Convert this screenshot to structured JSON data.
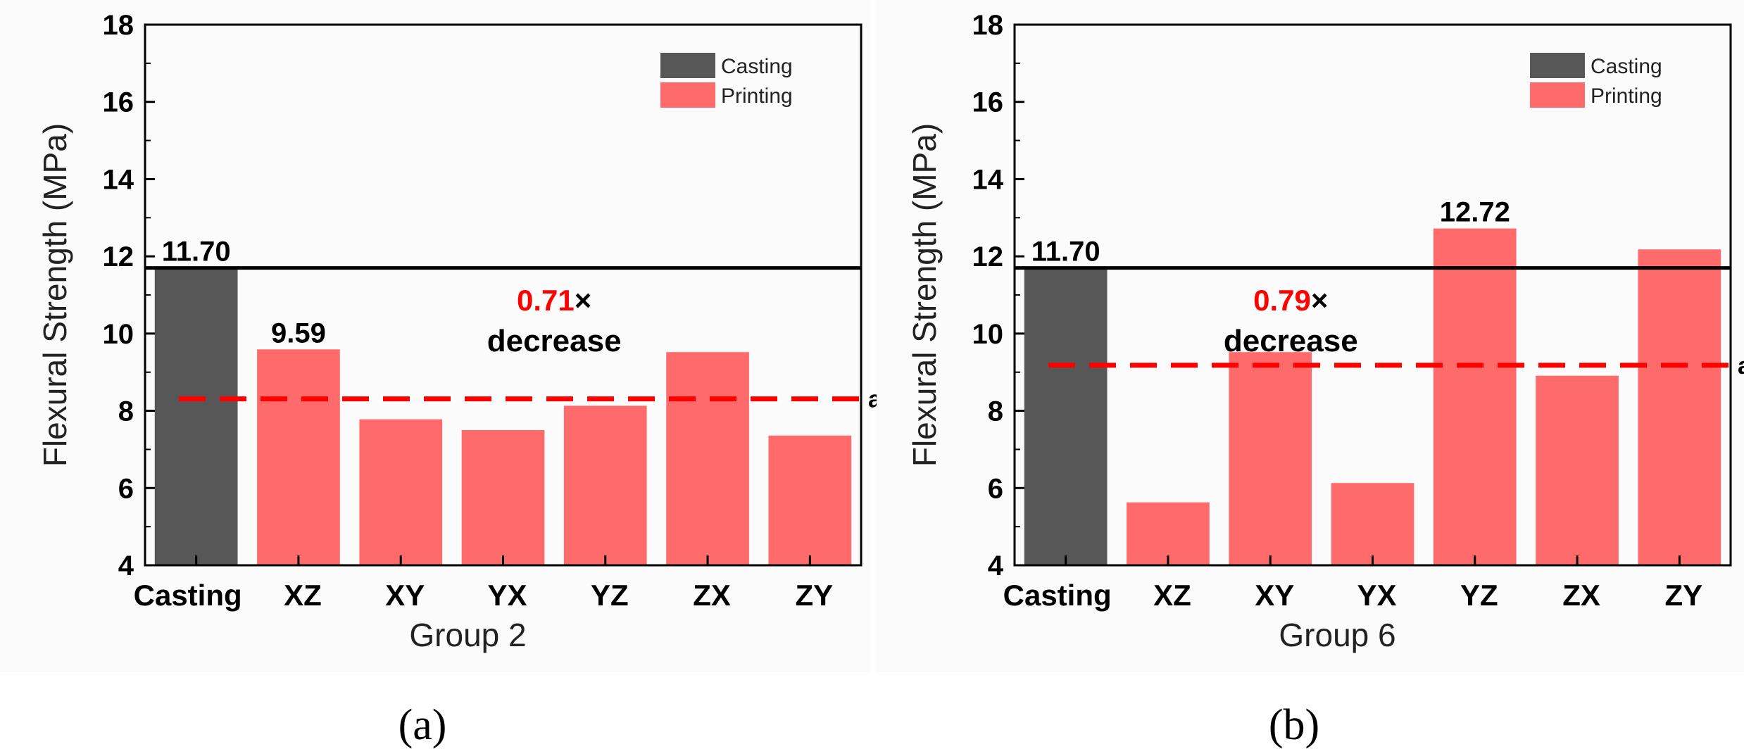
{
  "colors": {
    "casting": "#575757",
    "printing": "#ff6a6a",
    "highlight": "#ff0000",
    "reference_line": "#000000",
    "average_line": "#ff0000"
  },
  "chart_data": [
    {
      "type": "bar",
      "panel_label": "(a)",
      "xlabel": "Group 2",
      "ylabel": "Flexural Strength (MPa)",
      "ylim": [
        4,
        18
      ],
      "yticks": [
        4,
        6,
        8,
        10,
        12,
        14,
        16,
        18
      ],
      "grid": false,
      "legend_position": "top-right",
      "legend": [
        {
          "label": "Casting",
          "key": "casting"
        },
        {
          "label": "Printing",
          "key": "printing"
        }
      ],
      "categories": [
        "Casting",
        "XZ",
        "XY",
        "YX",
        "YZ",
        "ZX",
        "ZY"
      ],
      "values": [
        11.7,
        9.59,
        7.78,
        7.5,
        8.13,
        9.52,
        7.36
      ],
      "series_keys": [
        "casting",
        "printing",
        "printing",
        "printing",
        "printing",
        "printing",
        "printing"
      ],
      "bar_labels": [
        {
          "index": 0,
          "text": "11.70"
        },
        {
          "index": 1,
          "text": "9.59"
        }
      ],
      "reference_line": {
        "value": 11.7
      },
      "average_line": {
        "value": 8.31,
        "label": "average"
      },
      "annotation": {
        "ratio": "0.71",
        "times": "×",
        "word": "decrease",
        "x": 3.5,
        "y": 10.6
      }
    },
    {
      "type": "bar",
      "panel_label": "(b)",
      "xlabel": "Group 6",
      "ylabel": "Flexural Strength (MPa)",
      "ylim": [
        4,
        18
      ],
      "yticks": [
        4,
        6,
        8,
        10,
        12,
        14,
        16,
        18
      ],
      "grid": false,
      "legend_position": "top-right",
      "legend": [
        {
          "label": "Casting",
          "key": "casting"
        },
        {
          "label": "Printing",
          "key": "printing"
        }
      ],
      "categories": [
        "Casting",
        "XZ",
        "XY",
        "YX",
        "YZ",
        "ZX",
        "ZY"
      ],
      "values": [
        11.7,
        5.63,
        9.52,
        6.13,
        12.72,
        8.91,
        12.18
      ],
      "series_keys": [
        "casting",
        "printing",
        "printing",
        "printing",
        "printing",
        "printing",
        "printing"
      ],
      "bar_labels": [
        {
          "index": 0,
          "text": "11.70"
        },
        {
          "index": 4,
          "text": "12.72"
        }
      ],
      "reference_line": {
        "value": 11.7
      },
      "average_line": {
        "value": 9.18,
        "label": "average"
      },
      "annotation": {
        "ratio": "0.79",
        "times": "×",
        "word": "decrease",
        "x": 2.2,
        "y": 10.6
      }
    }
  ]
}
